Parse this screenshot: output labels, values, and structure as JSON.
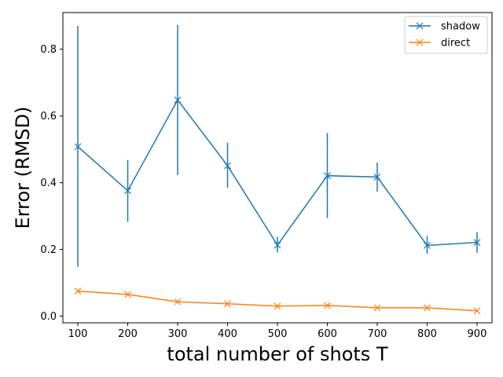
{
  "chart_data": {
    "type": "line",
    "title": "",
    "xlabel": "total number of shots T",
    "ylabel": "Error (RMSD)",
    "x": [
      100,
      200,
      300,
      400,
      500,
      600,
      700,
      800,
      900
    ],
    "xticks": [
      "100",
      "200",
      "300",
      "400",
      "500",
      "600",
      "700",
      "800",
      "900"
    ],
    "yticks": [
      "0.0",
      "0.2",
      "0.4",
      "0.6",
      "0.8"
    ],
    "xlim": [
      70,
      930
    ],
    "ylim": [
      -0.02,
      0.91
    ],
    "grid": false,
    "legend_position": "top-right",
    "series": [
      {
        "name": "shadow",
        "color": "#1f77b4",
        "marker": "x-cross",
        "values": [
          0.508,
          0.376,
          0.648,
          0.451,
          0.213,
          0.421,
          0.417,
          0.212,
          0.221
        ],
        "error_low": [
          0.148,
          0.283,
          0.423,
          0.385,
          0.191,
          0.294,
          0.373,
          0.187,
          0.19
        ],
        "error_high": [
          0.87,
          0.468,
          0.873,
          0.52,
          0.238,
          0.549,
          0.46,
          0.24,
          0.252
        ]
      },
      {
        "name": "direct",
        "color": "#ff7f0e",
        "marker": "x-cross",
        "values": [
          0.075,
          0.065,
          0.043,
          0.037,
          0.03,
          0.032,
          0.025,
          0.025,
          0.016
        ],
        "error_low": [
          0.075,
          0.065,
          0.043,
          0.037,
          0.03,
          0.032,
          0.025,
          0.025,
          0.016
        ],
        "error_high": [
          0.075,
          0.065,
          0.043,
          0.037,
          0.03,
          0.032,
          0.025,
          0.025,
          0.016
        ]
      }
    ]
  }
}
